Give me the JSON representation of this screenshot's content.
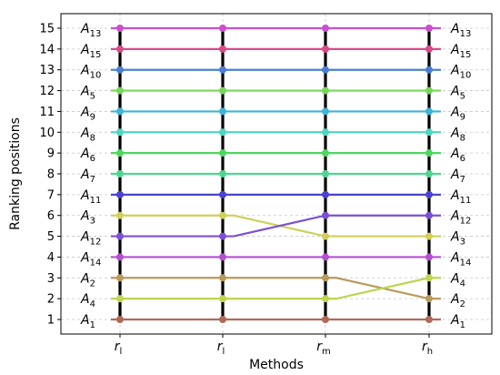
{
  "chart_data": {
    "type": "line",
    "xlabel": "Methods",
    "ylabel": "Ranking positions",
    "categories": [
      {
        "base": "r",
        "sub": "l"
      },
      {
        "base": "r",
        "sub": "l"
      },
      {
        "base": "r",
        "sub": "m"
      },
      {
        "base": "r",
        "sub": "h"
      }
    ],
    "ylim": [
      0.3,
      15.7
    ],
    "yticks": [
      1,
      2,
      3,
      4,
      5,
      6,
      7,
      8,
      9,
      10,
      11,
      12,
      13,
      14,
      15
    ],
    "grid": true,
    "series": [
      {
        "sub": "13",
        "color": "#c94fd0",
        "ranks": [
          15,
          15,
          15,
          15
        ]
      },
      {
        "sub": "15",
        "color": "#d94a86",
        "ranks": [
          14,
          14,
          14,
          14
        ]
      },
      {
        "sub": "10",
        "color": "#4a7fd4",
        "ranks": [
          13,
          13,
          13,
          13
        ]
      },
      {
        "sub": "5",
        "color": "#77d65a",
        "ranks": [
          12,
          12,
          12,
          12
        ]
      },
      {
        "sub": "9",
        "color": "#3fb4d6",
        "ranks": [
          11,
          11,
          11,
          11
        ]
      },
      {
        "sub": "8",
        "color": "#4fd6c0",
        "ranks": [
          10,
          10,
          10,
          10
        ]
      },
      {
        "sub": "6",
        "color": "#4ed660",
        "ranks": [
          9,
          9,
          9,
          9
        ]
      },
      {
        "sub": "7",
        "color": "#4fd68f",
        "ranks": [
          8,
          8,
          8,
          8
        ]
      },
      {
        "sub": "11",
        "color": "#4a43cf",
        "ranks": [
          7,
          7,
          7,
          7
        ]
      },
      {
        "sub": "3",
        "color": "#cfcf5a",
        "ranks": [
          6,
          6,
          5,
          5
        ]
      },
      {
        "sub": "12",
        "color": "#7a50d4",
        "ranks": [
          5,
          5,
          6,
          6
        ]
      },
      {
        "sub": "14",
        "color": "#b44fd0",
        "ranks": [
          4,
          4,
          4,
          4
        ]
      },
      {
        "sub": "2",
        "color": "#b89a5a",
        "ranks": [
          3,
          3,
          3,
          2
        ]
      },
      {
        "sub": "4",
        "color": "#bcd64f",
        "ranks": [
          2,
          2,
          2,
          3
        ]
      },
      {
        "sub": "1",
        "color": "#b06a5a",
        "ranks": [
          1,
          1,
          1,
          1
        ]
      }
    ],
    "label_prefix": "A"
  }
}
